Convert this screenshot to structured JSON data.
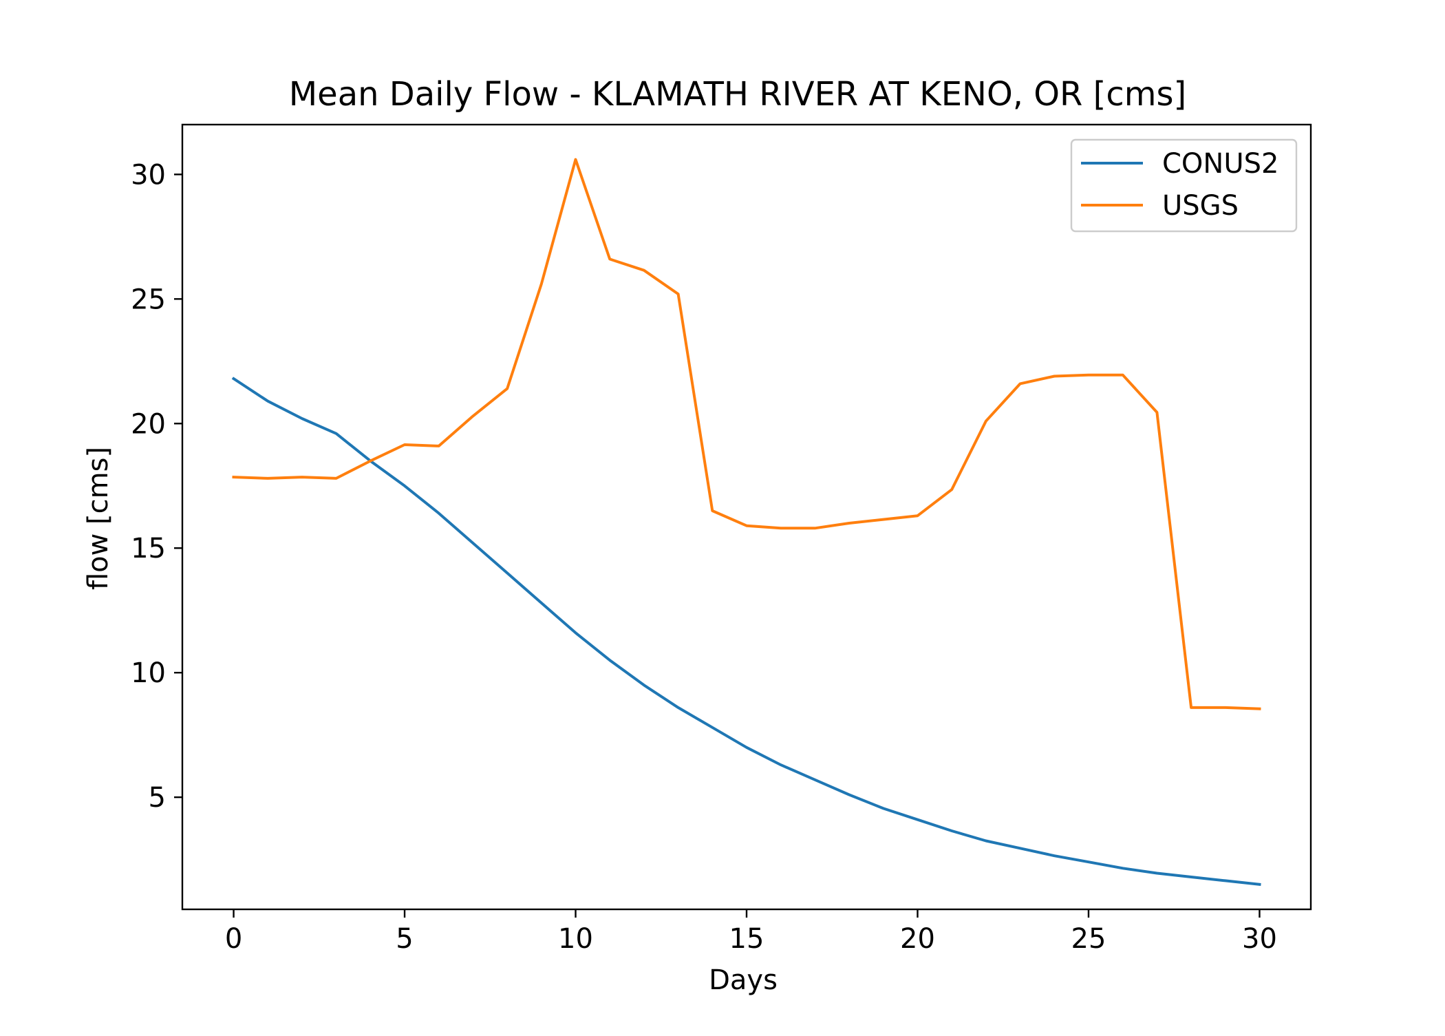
{
  "chart_data": {
    "type": "line",
    "title": "Mean Daily Flow - KLAMATH RIVER AT KENO, OR [cms]",
    "xlabel": "Days",
    "ylabel": "flow [cms]",
    "xlim": [
      -1.5,
      31.5
    ],
    "ylim": [
      0.5,
      32.0
    ],
    "xticks": [
      0,
      5,
      10,
      15,
      20,
      25,
      30
    ],
    "yticks": [
      5,
      10,
      15,
      20,
      25,
      30
    ],
    "grid": false,
    "legend_position": "top-right",
    "x": [
      0,
      1,
      2,
      3,
      4,
      5,
      6,
      7,
      8,
      9,
      10,
      11,
      12,
      13,
      14,
      15,
      16,
      17,
      18,
      19,
      20,
      21,
      22,
      23,
      24,
      25,
      26,
      27,
      28,
      29,
      30
    ],
    "series": [
      {
        "name": "CONUS2",
        "color": "#1f77b4",
        "values": [
          21.8,
          20.9,
          20.2,
          19.6,
          18.5,
          17.5,
          16.4,
          15.2,
          14.0,
          12.8,
          11.6,
          10.5,
          9.5,
          8.6,
          7.8,
          7.0,
          6.3,
          5.7,
          5.1,
          4.55,
          4.1,
          3.65,
          3.25,
          2.95,
          2.65,
          2.4,
          2.15,
          1.95,
          1.8,
          1.65,
          1.5
        ]
      },
      {
        "name": "USGS",
        "color": "#ff7f0e",
        "values": [
          17.85,
          17.8,
          17.85,
          17.8,
          18.5,
          19.15,
          19.1,
          20.3,
          21.4,
          25.6,
          30.6,
          26.6,
          26.15,
          25.2,
          16.5,
          15.9,
          15.8,
          15.8,
          16.0,
          16.15,
          16.3,
          17.35,
          20.1,
          21.6,
          21.9,
          21.95,
          21.95,
          20.45,
          8.6,
          8.6,
          8.55
        ]
      }
    ]
  }
}
